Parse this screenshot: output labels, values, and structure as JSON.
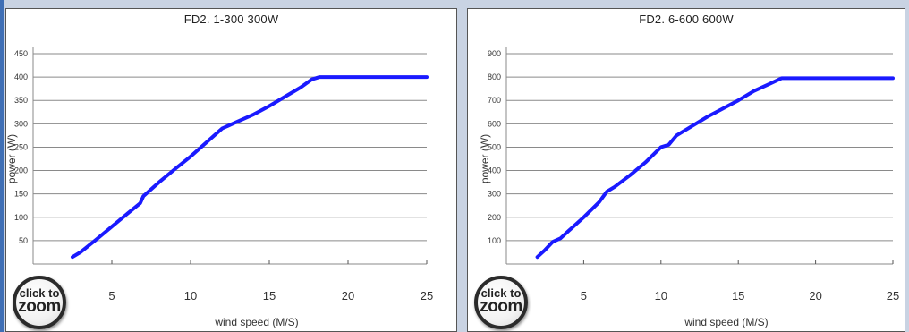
{
  "chart_data": [
    {
      "type": "line",
      "title": "FD2. 1-300  300W",
      "xlabel": "wind speed (M/S)",
      "ylabel": "power (W)",
      "xlim": [
        0,
        25
      ],
      "ylim": [
        0,
        450
      ],
      "xticks": [
        5,
        10,
        15,
        20,
        25
      ],
      "yticks": [
        50,
        100,
        150,
        200,
        250,
        300,
        350,
        400,
        450
      ],
      "grid": "horizontal",
      "series": [
        {
          "color": "#1a1aff",
          "x": [
            2.5,
            3,
            4,
            5,
            6,
            6.8,
            7,
            8,
            9,
            10,
            11,
            12,
            13,
            14,
            15,
            16,
            17,
            17.7,
            18.2,
            20,
            22,
            25
          ],
          "y": [
            15,
            25,
            52,
            80,
            108,
            130,
            145,
            175,
            203,
            230,
            260,
            290,
            305,
            320,
            338,
            358,
            378,
            395,
            400,
            400,
            400,
            400
          ]
        }
      ]
    },
    {
      "type": "line",
      "title": "FD2. 6-600  600W",
      "xlabel": "wind speed (M/S)",
      "ylabel": "power (W)",
      "xlim": [
        0,
        25
      ],
      "ylim": [
        0,
        900
      ],
      "xticks": [
        5,
        10,
        15,
        20,
        25
      ],
      "yticks": [
        100,
        200,
        300,
        400,
        500,
        600,
        700,
        800,
        900
      ],
      "grid": "horizontal",
      "series": [
        {
          "color": "#1a1aff",
          "x": [
            2,
            2.5,
            3,
            3.5,
            4,
            5,
            6,
            6.5,
            7,
            8,
            9,
            10,
            10.5,
            11,
            12,
            13,
            14,
            15,
            16,
            17,
            17.8,
            20,
            22,
            25
          ],
          "y": [
            30,
            60,
            95,
            110,
            140,
            200,
            265,
            310,
            330,
            380,
            435,
            500,
            510,
            550,
            590,
            630,
            665,
            700,
            740,
            770,
            795,
            795,
            795,
            795
          ]
        }
      ]
    }
  ],
  "badges": [
    {
      "line1": "click to",
      "line2": "zoom"
    },
    {
      "line1": "click to",
      "line2": "zoom"
    }
  ]
}
